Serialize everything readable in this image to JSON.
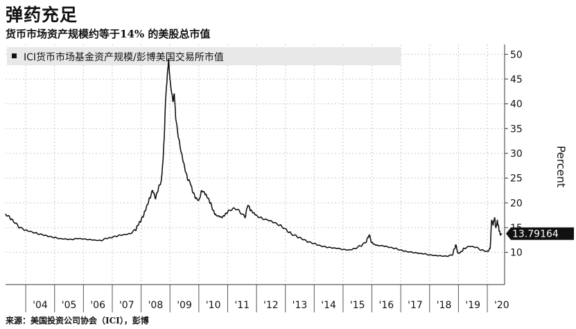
{
  "title": "弹药充足",
  "subtitle": "货币市场资产规模约等于14% 的美股总市值",
  "source": "来源：美国投资公司协会（ICI），彭博",
  "chart_data": {
    "type": "line",
    "legend": "ICI货币市场基金资产规模/彭博美国交易所市值",
    "ylabel": "Percent",
    "ylim": [
      3.5,
      52
    ],
    "xlim": [
      2003.3,
      2020.6
    ],
    "yticks": [
      10,
      15,
      20,
      25,
      30,
      35,
      40,
      45,
      50
    ],
    "xticks": [
      {
        "label": "'04",
        "x": 2004.5
      },
      {
        "label": "'05",
        "x": 2005.5
      },
      {
        "label": "'06",
        "x": 2006.5
      },
      {
        "label": "'07",
        "x": 2007.5
      },
      {
        "label": "'08",
        "x": 2008.5
      },
      {
        "label": "'09",
        "x": 2009.5
      },
      {
        "label": "'10",
        "x": 2010.5
      },
      {
        "label": "'11",
        "x": 2011.5
      },
      {
        "label": "'12",
        "x": 2012.5
      },
      {
        "label": "'13",
        "x": 2013.5
      },
      {
        "label": "'14",
        "x": 2014.5
      },
      {
        "label": "'15",
        "x": 2015.5
      },
      {
        "label": "'16",
        "x": 2016.5
      },
      {
        "label": "'17",
        "x": 2017.5
      },
      {
        "label": "'18",
        "x": 2018.5
      },
      {
        "label": "'19",
        "x": 2019.5
      },
      {
        "label": "'20",
        "x": 2020.5
      }
    ],
    "last_value_label": "13.79164",
    "last_value": 13.79,
    "grid": true,
    "legend_position": "top-left",
    "line_color": "#111111",
    "series": [
      {
        "x": [
          2003.3,
          2003.45,
          2003.6,
          2003.8,
          2004.0,
          2004.2,
          2004.4,
          2004.6,
          2004.8,
          2005.0,
          2005.2,
          2005.4,
          2005.6,
          2005.8,
          2006.0,
          2006.2,
          2006.4,
          2006.6,
          2006.8,
          2007.0,
          2007.2,
          2007.4,
          2007.6,
          2007.8,
          2007.9,
          2008.0,
          2008.1,
          2008.2,
          2008.3,
          2008.4,
          2008.5,
          2008.6,
          2008.7,
          2008.75,
          2008.8,
          2008.85,
          2008.9,
          2008.95,
          2009.0,
          2009.1,
          2009.15,
          2009.2,
          2009.3,
          2009.4,
          2009.5,
          2009.6,
          2009.7,
          2009.8,
          2009.9,
          2010.0,
          2010.1,
          2010.2,
          2010.3,
          2010.4,
          2010.5,
          2010.6,
          2010.7,
          2010.8,
          2010.9,
          2011.0,
          2011.2,
          2011.4,
          2011.6,
          2011.7,
          2011.8,
          2011.9,
          2012.0,
          2012.2,
          2012.4,
          2012.6,
          2012.8,
          2013.0,
          2013.2,
          2013.4,
          2013.6,
          2013.8,
          2014.0,
          2014.2,
          2014.4,
          2014.6,
          2014.8,
          2015.0,
          2015.2,
          2015.4,
          2015.6,
          2015.8,
          2015.9,
          2016.0,
          2016.1,
          2016.2,
          2016.4,
          2016.6,
          2016.8,
          2017.0,
          2017.2,
          2017.4,
          2017.6,
          2017.8,
          2018.0,
          2018.2,
          2018.4,
          2018.6,
          2018.8,
          2018.9,
          2019.0,
          2019.1,
          2019.2,
          2019.4,
          2019.6,
          2019.8,
          2020.0,
          2020.1,
          2020.15,
          2020.2,
          2020.25,
          2020.3,
          2020.35,
          2020.4,
          2020.45,
          2020.5
        ],
        "y": [
          17.8,
          17.0,
          16.0,
          15.0,
          14.5,
          14.2,
          13.8,
          13.5,
          13.2,
          13.0,
          12.8,
          12.7,
          12.6,
          12.8,
          12.7,
          12.6,
          12.5,
          12.4,
          12.8,
          13.0,
          13.4,
          13.6,
          13.8,
          14.5,
          15.5,
          16.5,
          17.8,
          19.5,
          21.0,
          22.5,
          20.8,
          23.0,
          24.5,
          28.0,
          33.0,
          41.0,
          45.0,
          49.0,
          45.0,
          40.5,
          42.0,
          37.0,
          33.0,
          30.0,
          27.5,
          25.0,
          24.0,
          22.0,
          21.0,
          20.5,
          22.5,
          22.0,
          21.0,
          20.0,
          18.5,
          17.5,
          17.3,
          17.0,
          17.5,
          18.2,
          19.0,
          18.5,
          17.0,
          19.5,
          18.5,
          18.0,
          17.5,
          16.8,
          16.5,
          16.0,
          15.5,
          14.8,
          13.8,
          13.2,
          12.6,
          12.1,
          11.8,
          11.4,
          11.1,
          10.9,
          10.8,
          10.6,
          10.5,
          10.8,
          11.3,
          12.0,
          13.5,
          12.0,
          11.6,
          11.4,
          11.3,
          11.0,
          10.8,
          10.5,
          10.2,
          10.0,
          9.8,
          9.7,
          9.5,
          9.4,
          9.3,
          9.2,
          9.5,
          11.5,
          9.8,
          10.2,
          10.8,
          11.2,
          11.0,
          10.5,
          10.2,
          10.8,
          16.5,
          15.5,
          17.0,
          15.0,
          16.5,
          14.8,
          13.5,
          13.79
        ]
      }
    ]
  }
}
